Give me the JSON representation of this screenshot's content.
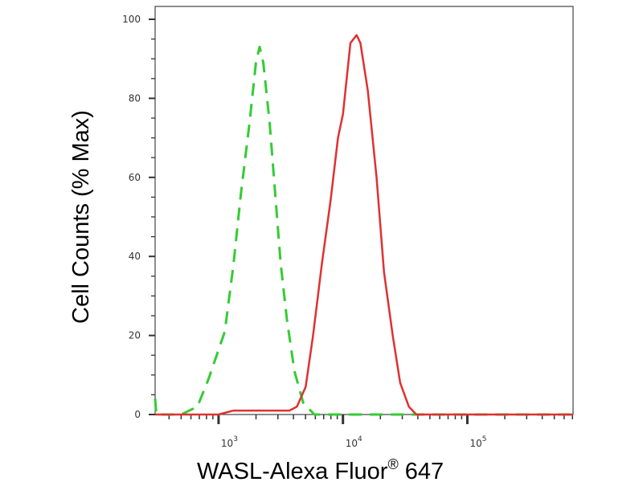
{
  "chart_data": {
    "type": "line",
    "title": "",
    "xlabel": "WASL-Alexa Fluor® 647",
    "xlabel_main": "WASL-Alexa Fluor",
    "xlabel_sup": "®",
    "xlabel_tail": " 647",
    "ylabel": "Cell Counts (% Max)",
    "x_scale": "log",
    "xlim_log10": [
      2.49,
      5.85
    ],
    "ylim": [
      0,
      100
    ],
    "x_ticks": [
      {
        "base": "10",
        "exp": "3",
        "value": 1000
      },
      {
        "base": "10",
        "exp": "4",
        "value": 10000
      },
      {
        "base": "10",
        "exp": "5",
        "value": 100000
      }
    ],
    "y_ticks": [
      "0",
      "20",
      "40",
      "60",
      "80",
      "100"
    ],
    "grid": false,
    "series": [
      {
        "style": "dashed",
        "color": "#33cc33",
        "log10_x": [
          2.49,
          2.5,
          2.55,
          2.7,
          2.83,
          2.92,
          3.05,
          3.12,
          3.18,
          3.25,
          3.3,
          3.33,
          3.36,
          3.41,
          3.46,
          3.5,
          3.55,
          3.61,
          3.68,
          3.77,
          4.0,
          5.85
        ],
        "y": [
          4,
          0,
          0,
          0,
          2,
          9,
          21,
          38,
          56,
          74,
          89,
          93,
          89,
          74,
          54,
          38,
          24,
          11,
          3,
          0,
          0,
          0
        ]
      },
      {
        "style": "solid",
        "color": "#e03030",
        "log10_x": [
          2.49,
          3.0,
          3.12,
          3.57,
          3.63,
          3.7,
          3.76,
          3.83,
          3.9,
          3.96,
          4.0,
          4.06,
          4.11,
          4.14,
          4.2,
          4.27,
          4.33,
          4.4,
          4.46,
          4.53,
          4.59,
          4.65,
          5.85
        ],
        "y": [
          0,
          0,
          1,
          1,
          2,
          7,
          20,
          38,
          54,
          70,
          76,
          94,
          96,
          94,
          82,
          60,
          36,
          20,
          8,
          2,
          0,
          0,
          0
        ]
      }
    ]
  }
}
